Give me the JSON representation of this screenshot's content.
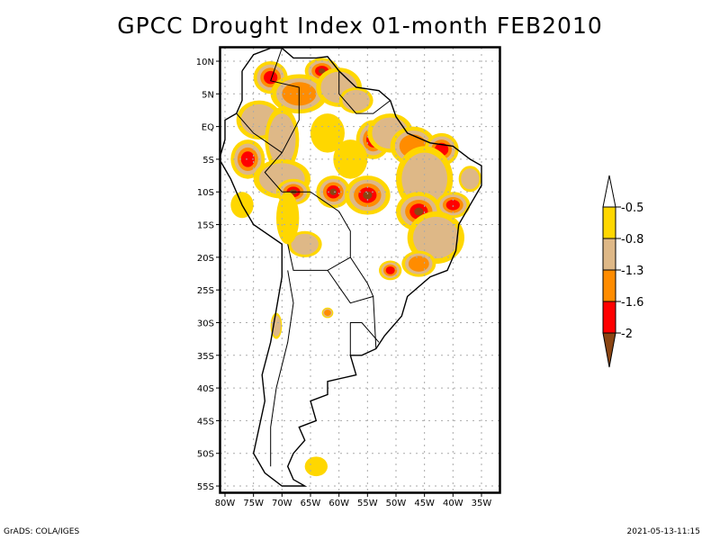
{
  "title": "GPCC Drought Index 01-month FEB2010",
  "footer": {
    "left": "GrADS: COLA/IGES",
    "right": "2021-05-13-11:15"
  },
  "map": {
    "region": "South America",
    "lon_range": [
      -82,
      -33
    ],
    "lat_range": [
      -56,
      12
    ],
    "y_tick_labels": [
      "10N",
      "5N",
      "EQ",
      "5S",
      "10S",
      "15S",
      "20S",
      "25S",
      "30S",
      "35S",
      "40S",
      "45S",
      "50S",
      "55S"
    ],
    "y_tick_values": [
      10,
      5,
      0,
      -5,
      -10,
      -15,
      -20,
      -25,
      -30,
      -35,
      -40,
      -45,
      -50,
      -55
    ],
    "x_tick_labels": [
      "80W",
      "75W",
      "70W",
      "65W",
      "60W",
      "55W",
      "50W",
      "45W",
      "40W",
      "35W"
    ],
    "x_tick_values": [
      -80,
      -75,
      -70,
      -65,
      -60,
      -55,
      -50,
      -45,
      -40,
      -35
    ],
    "grid": "dotted"
  },
  "legend": {
    "levels": [
      {
        "label": "-0.5",
        "color": "#ffd700"
      },
      {
        "label": "-0.8",
        "color": "#deb887"
      },
      {
        "label": "-1.3",
        "color": "#ff8c00"
      },
      {
        "label": "-1.6",
        "color": "#ff0000"
      },
      {
        "label": "-2",
        "color": "#8b4513"
      }
    ],
    "top_color": "#ffffff",
    "bottom_color": "#8b4513"
  },
  "colors": {
    "c1": "#ffd700",
    "c2": "#deb887",
    "c3": "#ff8c00",
    "c4": "#ff0000",
    "c5": "#8b4513"
  }
}
